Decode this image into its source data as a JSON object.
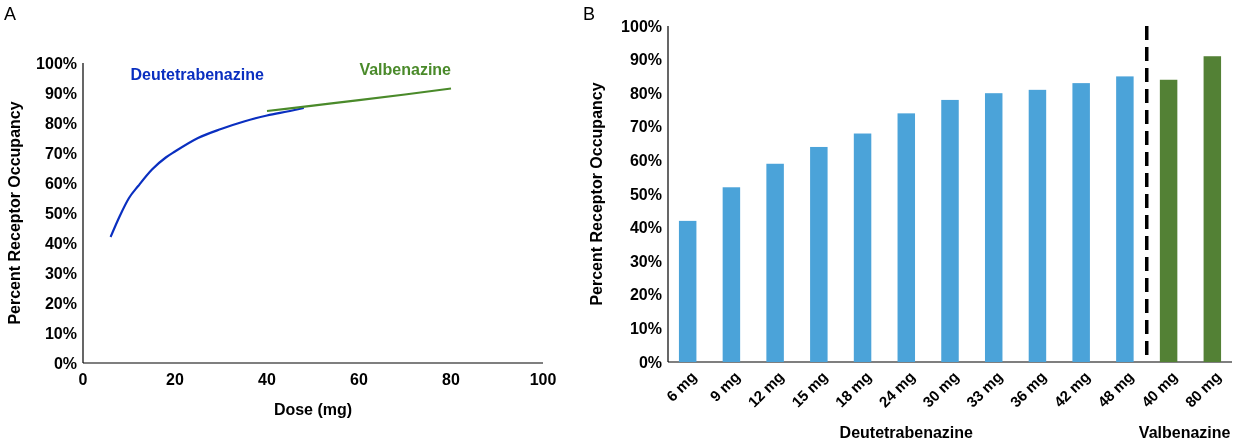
{
  "chart_data": [
    {
      "type": "line",
      "title": "A",
      "xlabel": "Dose (mg)",
      "ylabel": "Percent Receptor Occupancy",
      "xlim": [
        0,
        100
      ],
      "xticks": [
        0,
        20,
        40,
        60,
        80,
        100
      ],
      "ylim": [
        0,
        100
      ],
      "yticks": [
        {
          "value": 0,
          "label": "0%"
        },
        {
          "value": 10,
          "label": "10%"
        },
        {
          "value": 20,
          "label": "20%"
        },
        {
          "value": 30,
          "label": "30%"
        },
        {
          "value": 40,
          "label": "40%"
        },
        {
          "value": 50,
          "label": "50%"
        },
        {
          "value": 60,
          "label": "60%"
        },
        {
          "value": 70,
          "label": "70%"
        },
        {
          "value": 80,
          "label": "80%"
        },
        {
          "value": 90,
          "label": "90%"
        },
        {
          "value": 100,
          "label": "100%"
        }
      ],
      "series": [
        {
          "name": "Deutetrabenazine",
          "color": "#0a2fc0",
          "x": [
            6,
            8,
            10,
            12,
            15,
            18,
            20,
            25,
            30,
            35,
            40,
            45,
            48
          ],
          "values": [
            42,
            49,
            55,
            59,
            64.5,
            68.5,
            70.5,
            75,
            78,
            80.5,
            82.5,
            84,
            85
          ]
        },
        {
          "name": "Valbenazine",
          "color": "#4a8a2a",
          "x": [
            40,
            50,
            60,
            70,
            80
          ],
          "values": [
            84,
            85.8,
            87.6,
            89.5,
            91.5
          ]
        }
      ]
    },
    {
      "type": "bar",
      "title": "B",
      "ylabel": "Percent Receptor Occupancy",
      "categories": [
        "6 mg",
        "9 mg",
        "12 mg",
        "15 mg",
        "18 mg",
        "24 mg",
        "30 mg",
        "33 mg",
        "36 mg",
        "42 mg",
        "48 mg",
        "40 mg",
        "80 mg"
      ],
      "ylim": [
        0,
        100
      ],
      "yticks": [
        {
          "value": 0,
          "label": "0%"
        },
        {
          "value": 10,
          "label": "10%"
        },
        {
          "value": 20,
          "label": "20%"
        },
        {
          "value": 30,
          "label": "30%"
        },
        {
          "value": 40,
          "label": "40%"
        },
        {
          "value": 50,
          "label": "50%"
        },
        {
          "value": 60,
          "label": "60%"
        },
        {
          "value": 70,
          "label": "70%"
        },
        {
          "value": 80,
          "label": "80%"
        },
        {
          "value": 90,
          "label": "90%"
        },
        {
          "value": 100,
          "label": "100%"
        }
      ],
      "values": [
        42,
        52,
        59,
        64,
        68,
        74,
        78,
        80,
        81,
        83,
        85,
        84,
        91
      ],
      "colors": [
        "#4ba3d9",
        "#4ba3d9",
        "#4ba3d9",
        "#4ba3d9",
        "#4ba3d9",
        "#4ba3d9",
        "#4ba3d9",
        "#4ba3d9",
        "#4ba3d9",
        "#4ba3d9",
        "#4ba3d9",
        "#538135",
        "#538135"
      ],
      "annotations": [
        "Deutetrabenazine",
        "Valbenazine"
      ]
    }
  ]
}
